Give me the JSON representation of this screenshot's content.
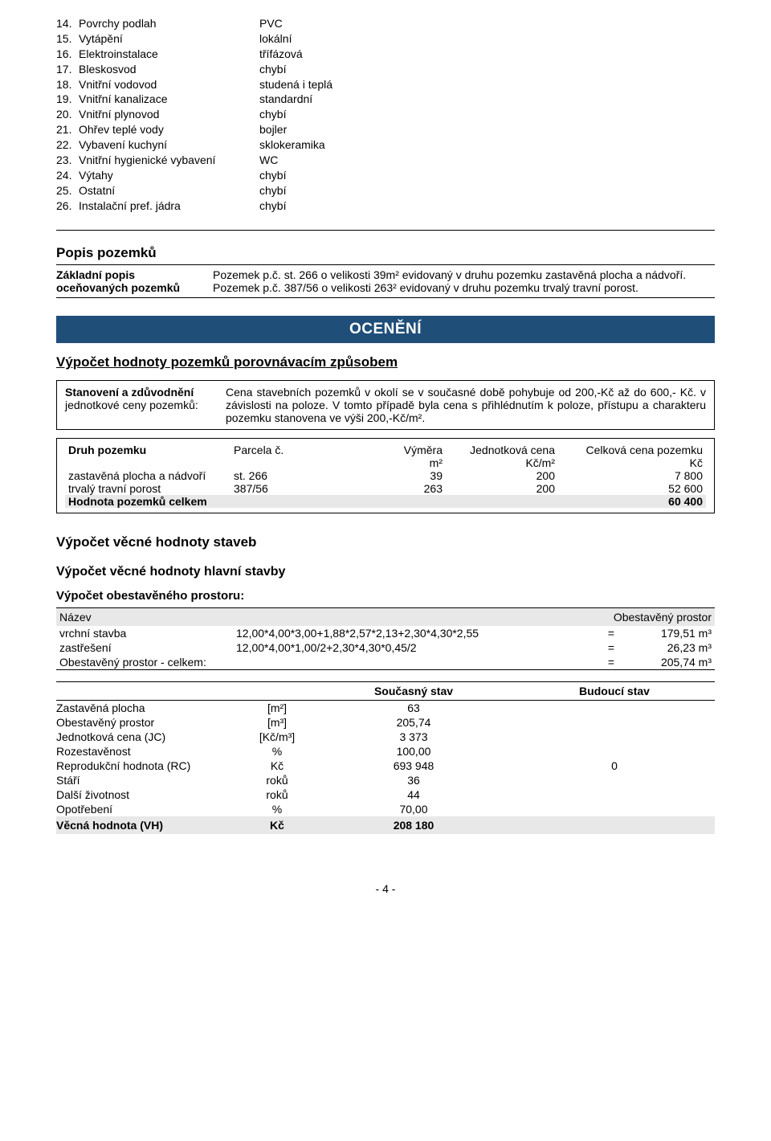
{
  "attributes": [
    {
      "num": "14.",
      "label": "Povrchy podlah",
      "val": "PVC"
    },
    {
      "num": "15.",
      "label": "Vytápění",
      "val": "lokální"
    },
    {
      "num": "16.",
      "label": "Elektroinstalace",
      "val": "třífázová"
    },
    {
      "num": "17.",
      "label": "Bleskosvod",
      "val": "chybí"
    },
    {
      "num": "18.",
      "label": "Vnitřní vodovod",
      "val": "studená i teplá"
    },
    {
      "num": "19.",
      "label": "Vnitřní kanalizace",
      "val": "standardní"
    },
    {
      "num": "20.",
      "label": "Vnitřní plynovod",
      "val": "chybí"
    },
    {
      "num": "21.",
      "label": "Ohřev teplé vody",
      "val": "bojler"
    },
    {
      "num": "22.",
      "label": "Vybavení kuchyní",
      "val": "sklokeramika"
    },
    {
      "num": "23.",
      "label": "Vnitřní hygienické vybavení",
      "val": "WC"
    },
    {
      "num": "24.",
      "label": "Výtahy",
      "val": "chybí"
    },
    {
      "num": "25.",
      "label": "Ostatní",
      "val": "chybí"
    },
    {
      "num": "26.",
      "label": "Instalační pref. jádra",
      "val": "chybí"
    }
  ],
  "popis": {
    "heading": "Popis pozemků",
    "left1": "Základní popis",
    "left2": "oceňovaných pozemků",
    "right1": "Pozemek p.č. st. 266 o velikosti 39m² evidovaný v druhu pozemku zastavěná plocha a nádvoří.",
    "right2": "Pozemek p.č. 387/56 o velikosti 263² evidovaný v druhu pozemku trvalý travní porost."
  },
  "banner": "OCENĚNÍ",
  "vypocet_h": "Výpočet hodnoty pozemků porovnávacím způsobem",
  "stan": {
    "left1": "Stanovení a zdůvodnění",
    "left2": "jednotkové ceny pozemků:",
    "right": "Cena stavebních pozemků v  okolí se v současné době pohybuje od 200,-Kč až do  600,- Kč. v závislosti na poloze. V tomto případě byla cena s přihlédnutím k poloze, přístupu a charakteru pozemku stanovena ve výši 200,-Kč/m²."
  },
  "land": {
    "head": {
      "c1": "Druh pozemku",
      "c2": "Parcela č.",
      "c3": "Výměra",
      "c4": "Jednotková cena",
      "c5": "Celková cena pozemku"
    },
    "sub": {
      "c3": "m²",
      "c4": "Kč/m²",
      "c5": "Kč"
    },
    "rows": [
      {
        "c1": "zastavěná plocha a nádvoří",
        "c2": "st. 266",
        "c3": "39",
        "c4": "200",
        "c5": "7 800"
      },
      {
        "c1": "trvalý travní porost",
        "c2": "387/56",
        "c3": "263",
        "c4": "200",
        "c5": "52 600"
      }
    ],
    "total_label": "Hodnota pozemků celkem",
    "total_val": "60 400"
  },
  "vvs_h": "Výpočet věcné hodnoty staveb",
  "vvhs_h": "Výpočet věcné hodnoty hlavní stavby",
  "obest_h": "Výpočet obestavěného prostoru:",
  "obest": {
    "head_n": "Název",
    "head_v": "Obestavěný prostor",
    "rows": [
      {
        "n": "vrchní stavba",
        "f": "12,00*4,00*3,00+1,88*2,57*2,13+2,30*4,30*2,55",
        "eq": "=",
        "v": "179,51 m³"
      },
      {
        "n": "zastřešení",
        "f": "12,00*4,00*1,00/2+2,30*4,30*0,45/2",
        "eq": "=",
        "v": "26,23 m³"
      },
      {
        "n": "Obestavěný prostor - celkem:",
        "f": "",
        "eq": "=",
        "v": "205,74 m³"
      }
    ]
  },
  "stav": {
    "head_s1": "Současný stav",
    "head_s2": "Budoucí stav",
    "rows": [
      {
        "l": "Zastavěná plocha",
        "u": "[m²]",
        "s1": "63",
        "s2": ""
      },
      {
        "l": "Obestavěný prostor",
        "u": "[m³]",
        "s1": "205,74",
        "s2": ""
      },
      {
        "l": "Jednotková cena (JC)",
        "u": "[Kč/m³]",
        "s1": "3 373",
        "s2": ""
      },
      {
        "l": "Rozestavěnost",
        "u": "%",
        "s1": "100,00",
        "s2": ""
      },
      {
        "l": "Reprodukční hodnota (RC)",
        "u": "Kč",
        "s1": "693 948",
        "s2": "0"
      },
      {
        "l": "Stáří",
        "u": "roků",
        "s1": "36",
        "s2": ""
      },
      {
        "l": "Další životnost",
        "u": "roků",
        "s1": "44",
        "s2": ""
      },
      {
        "l": "Opotřebení",
        "u": "%",
        "s1": "70,00",
        "s2": ""
      }
    ],
    "total": {
      "l": "Věcná hodnota (VH)",
      "u": "Kč",
      "s1": "208 180",
      "s2": ""
    }
  },
  "page": "- 4 -"
}
